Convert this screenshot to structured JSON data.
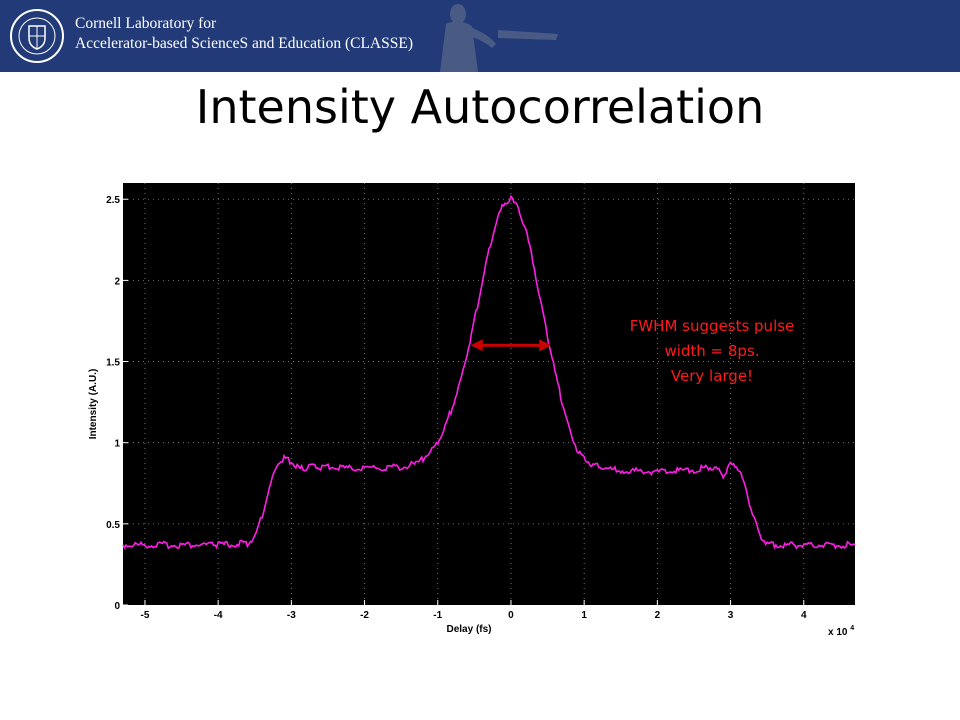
{
  "banner": {
    "org_line1": "Cornell Laboratory for",
    "org_line2": "Accelerator-based ScienceS and Education (CLASSE)",
    "color": "#223a77"
  },
  "slide": {
    "title": "Intensity Autocorrelation"
  },
  "annotation": {
    "lines": [
      "FWHM suggests pulse",
      "width = 8ps.",
      "Very large!"
    ],
    "color": "#ff1a1a"
  },
  "chart_data": {
    "type": "line",
    "title": "",
    "xlabel": "Delay (fs)",
    "ylabel": "Intensity (A.U.)",
    "x_multiplier": "x 10",
    "x_multiplier_exp": "4",
    "xlim": [
      -5.3,
      4.7
    ],
    "ylim": [
      0,
      2.6
    ],
    "xticks": [
      -5,
      -4,
      -3,
      -2,
      -1,
      0,
      1,
      2,
      3,
      4
    ],
    "xtick_labels": [
      "-5",
      "-4",
      "-3",
      "-2",
      "-1",
      "0",
      "1",
      "2",
      "3",
      "4"
    ],
    "yticks": [
      0,
      0.5,
      1,
      1.5,
      2,
      2.5
    ],
    "ytick_labels": [
      "0",
      "0.5",
      "1",
      "1.5",
      "2",
      "2.5"
    ],
    "grid": true,
    "background": "#000000",
    "series": [
      {
        "color": "#ff1ee6",
        "x": [
          -5.3,
          -4.0,
          -3.6,
          -3.5,
          -3.4,
          -3.3,
          -3.2,
          -3.1,
          -3.0,
          -2.9,
          -2.8,
          -2.7,
          -2.6,
          -2.5,
          -2.0,
          -1.5,
          -1.3,
          -1.2,
          -1.1,
          -1.0,
          -0.9,
          -0.8,
          -0.7,
          -0.6,
          -0.5,
          -0.4,
          -0.3,
          -0.2,
          -0.1,
          0.0,
          0.1,
          0.2,
          0.3,
          0.4,
          0.5,
          0.6,
          0.7,
          0.8,
          0.9,
          1.0,
          1.1,
          1.2,
          1.3,
          1.5,
          2.0,
          2.5,
          2.6,
          2.7,
          2.8,
          2.9,
          3.0,
          3.1,
          3.2,
          3.3,
          3.4,
          3.5,
          3.6,
          4.0,
          4.7
        ],
        "y": [
          0.37,
          0.37,
          0.38,
          0.42,
          0.55,
          0.72,
          0.86,
          0.91,
          0.88,
          0.84,
          0.84,
          0.86,
          0.85,
          0.85,
          0.84,
          0.85,
          0.87,
          0.9,
          0.94,
          1.0,
          1.1,
          1.22,
          1.36,
          1.55,
          1.75,
          1.98,
          2.18,
          2.36,
          2.47,
          2.5,
          2.45,
          2.31,
          2.12,
          1.88,
          1.66,
          1.44,
          1.25,
          1.08,
          0.96,
          0.9,
          0.87,
          0.85,
          0.84,
          0.83,
          0.82,
          0.83,
          0.84,
          0.85,
          0.84,
          0.8,
          0.86,
          0.85,
          0.72,
          0.56,
          0.43,
          0.38,
          0.37,
          0.37,
          0.37
        ]
      }
    ],
    "fwhm_arrow": {
      "x_start": -0.55,
      "x_end": 0.55,
      "y": 1.6,
      "color": "#cc0000"
    }
  }
}
